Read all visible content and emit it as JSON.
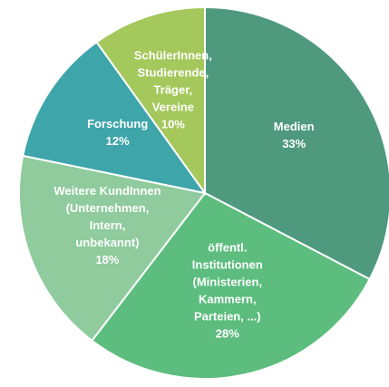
{
  "chart_data": {
    "type": "pie",
    "categories": [
      "Medien",
      "öffentl.\nInstitutionen\n(Ministerien,\nKammern,\nParteien, ...)",
      "Weitere KundInnen\n(Unternehmen,\nIntern,\nunbekannt)",
      "Forschung",
      "SchülerInnen,\nStudierende,\nTräger,\nVereine"
    ],
    "values": [
      33,
      28,
      18,
      12,
      10
    ],
    "value_labels": [
      "33%",
      "28%",
      "18%",
      "12%",
      "10%"
    ],
    "colors": [
      "#4f9a7f",
      "#5cbd7e",
      "#8fcb9d",
      "#3ea5aa",
      "#a4c85b"
    ]
  }
}
